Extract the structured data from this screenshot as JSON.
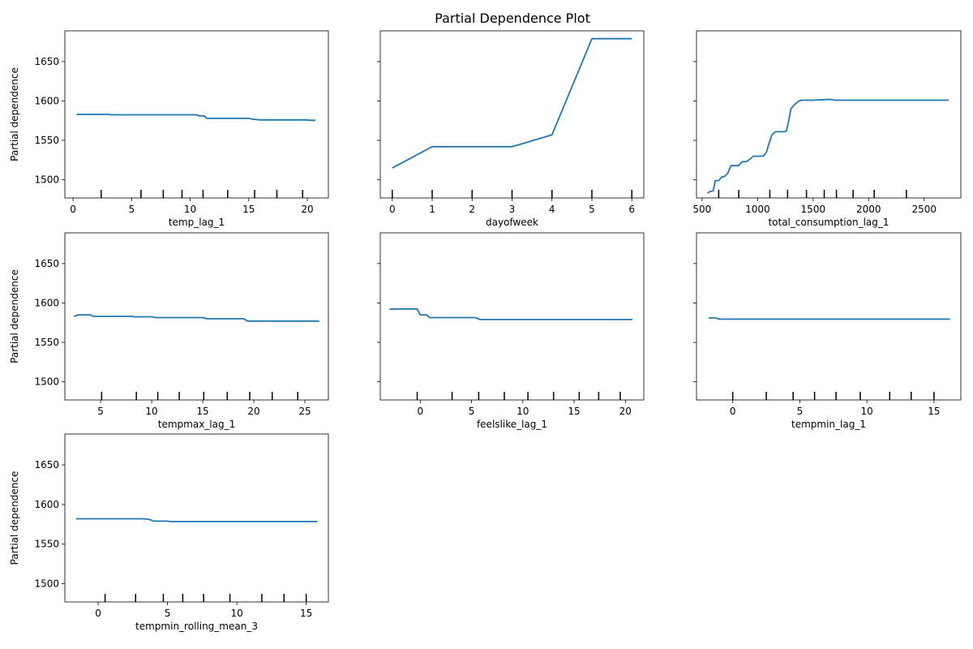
{
  "figure": {
    "title": "Partial Dependence Plot",
    "line_color": "#1f77b4"
  },
  "chart_data": [
    {
      "type": "line",
      "xlabel": "temp_lag_1",
      "ylabel": "Partial dependence",
      "ylim": [
        1477,
        1689
      ],
      "xlim": [
        -0.7,
        21.8
      ],
      "xticks": [
        0,
        5,
        10,
        15,
        20
      ],
      "yticks": [
        1500,
        1550,
        1600,
        1650
      ],
      "series": [
        {
          "x": [
            0.3,
            3.0,
            3.3,
            10.5,
            10.8,
            11.2,
            11.4,
            15.0,
            15.3,
            16.0,
            20.0,
            20.3,
            20.7
          ],
          "y": [
            1583,
            1583,
            1582.5,
            1582.5,
            1581,
            1581,
            1578,
            1578,
            1577,
            1576,
            1576,
            1575.5,
            1575.5
          ]
        }
      ],
      "deciles": [
        2.4,
        5.8,
        7.7,
        9.3,
        11.1,
        13.2,
        15.5,
        17.4,
        19.6
      ]
    },
    {
      "type": "line",
      "xlabel": "dayofweek",
      "ylabel": "",
      "ylim": [
        1477,
        1689
      ],
      "xlim": [
        -0.3,
        6.3
      ],
      "xticks": [
        0,
        1,
        2,
        3,
        4,
        5,
        6
      ],
      "yticks": [
        1500,
        1550,
        1600,
        1650
      ],
      "series": [
        {
          "x": [
            0,
            1,
            2,
            3,
            4,
            5,
            6
          ],
          "y": [
            1515,
            1542,
            1542,
            1542,
            1557,
            1679,
            1679
          ]
        }
      ],
      "deciles": [
        0,
        1,
        2,
        3,
        4,
        5,
        6
      ]
    },
    {
      "type": "line",
      "xlabel": "total_consumption_lag_1",
      "ylabel": "",
      "ylim": [
        1477,
        1689
      ],
      "xlim": [
        450,
        2830
      ],
      "xticks": [
        500,
        1000,
        1500,
        2000,
        2500
      ],
      "yticks": [
        1500,
        1550,
        1600,
        1650
      ],
      "series": [
        {
          "x": [
            550,
            570,
            600,
            620,
            650,
            680,
            700,
            730,
            760,
            800,
            830,
            860,
            900,
            930,
            960,
            1000,
            1050,
            1080,
            1100,
            1130,
            1160,
            1200,
            1240,
            1260,
            1280,
            1300,
            1330,
            1370,
            1400,
            1500,
            1650,
            1700,
            2000,
            2500,
            2720
          ],
          "y": [
            1483,
            1485,
            1486,
            1499,
            1499,
            1504,
            1504,
            1508,
            1518,
            1518,
            1518,
            1523,
            1523,
            1526,
            1530,
            1530,
            1530,
            1535,
            1545,
            1557,
            1561,
            1561,
            1561,
            1562,
            1575,
            1590,
            1595,
            1600,
            1601,
            1601,
            1602,
            1601,
            1601,
            1601,
            1601
          ]
        }
      ],
      "deciles": [
        650,
        830,
        1110,
        1270,
        1440,
        1600,
        1710,
        1860,
        2050,
        2340
      ]
    },
    {
      "type": "line",
      "xlabel": "tempmax_lag_1",
      "ylabel": "Partial dependence",
      "ylim": [
        1477,
        1689
      ],
      "xlim": [
        1.5,
        27.3
      ],
      "xticks": [
        5,
        10,
        15,
        20,
        25
      ],
      "yticks": [
        1500,
        1550,
        1600,
        1650
      ],
      "series": [
        {
          "x": [
            2.4,
            2.8,
            4.0,
            4.3,
            8.0,
            8.4,
            10.0,
            10.4,
            15.0,
            15.4,
            19.0,
            19.4,
            26.4
          ],
          "y": [
            1583,
            1585,
            1585,
            1583,
            1583,
            1582.5,
            1582.5,
            1581.5,
            1581.5,
            1580,
            1580,
            1577,
            1577
          ]
        }
      ],
      "deciles": [
        5.1,
        8.5,
        10.6,
        12.7,
        15.1,
        17.4,
        19.6,
        21.8,
        24.3
      ]
    },
    {
      "type": "line",
      "xlabel": "feelslike_lag_1",
      "ylabel": "",
      "ylim": [
        1477,
        1689
      ],
      "xlim": [
        -3.9,
        21.8
      ],
      "xticks": [
        0,
        5,
        10,
        15,
        20
      ],
      "yticks": [
        1500,
        1550,
        1600,
        1650
      ],
      "series": [
        {
          "x": [
            -3.0,
            -2.5,
            -0.3,
            0.0,
            0.6,
            0.9,
            5.4,
            5.8,
            20.7
          ],
          "y": [
            1592,
            1592.5,
            1592.5,
            1585,
            1585,
            1581.5,
            1581.5,
            1579,
            1579
          ]
        }
      ],
      "deciles": [
        -0.3,
        3.1,
        5.7,
        8.2,
        10.5,
        13.0,
        15.5,
        17.4,
        19.5
      ]
    },
    {
      "type": "line",
      "xlabel": "tempmin_lag_1",
      "ylabel": "",
      "ylim": [
        1477,
        1689
      ],
      "xlim": [
        -2.7,
        17.0
      ],
      "xticks": [
        0,
        5,
        10,
        15
      ],
      "yticks": [
        1500,
        1550,
        1600,
        1650
      ],
      "series": [
        {
          "x": [
            -1.8,
            -1.3,
            -1.0,
            16.2
          ],
          "y": [
            1581,
            1581,
            1579.5,
            1579.5
          ]
        }
      ],
      "deciles": [
        0.0,
        2.5,
        4.5,
        6.1,
        7.7,
        9.5,
        11.7,
        13.3,
        15.0
      ]
    },
    {
      "type": "line",
      "xlabel": "tempmin_rolling_mean_3",
      "ylabel": "Partial dependence",
      "ylim": [
        1477,
        1689
      ],
      "xlim": [
        -2.4,
        16.6
      ],
      "xticks": [
        0,
        5,
        10,
        15
      ],
      "yticks": [
        1500,
        1550,
        1600,
        1650
      ],
      "series": [
        {
          "x": [
            -1.6,
            3.2,
            3.6,
            3.8,
            4.0,
            5.0,
            5.2,
            15.8
          ],
          "y": [
            1582,
            1582,
            1581.5,
            1580.5,
            1579,
            1579,
            1578.5,
            1578.5
          ]
        }
      ],
      "deciles": [
        0.5,
        2.7,
        4.7,
        6.1,
        7.6,
        9.5,
        11.8,
        13.4,
        15.0
      ]
    }
  ]
}
